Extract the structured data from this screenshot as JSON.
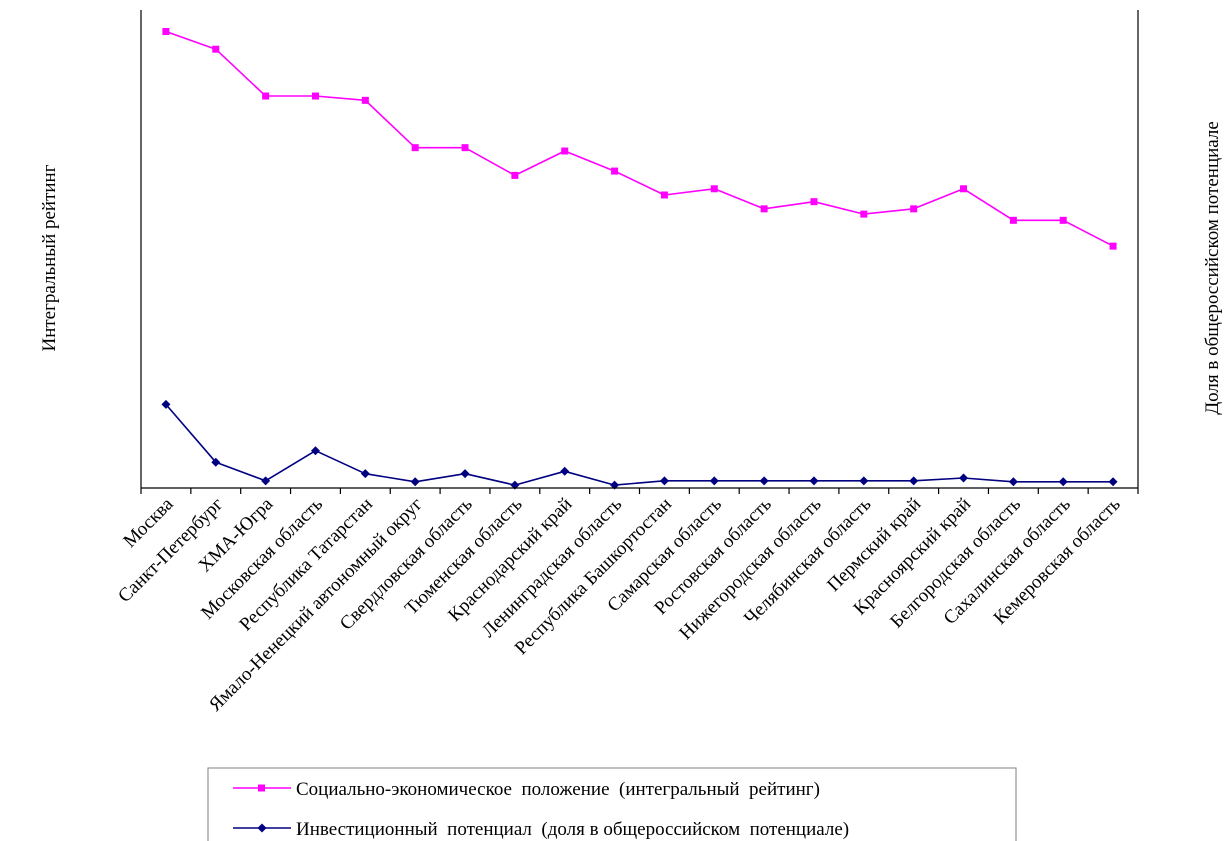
{
  "chart_data": {
    "type": "line",
    "title": "",
    "ylabel_left": "Интегральный  рейтинг",
    "ylabel_right": "Доля в общероссийском потенциале",
    "categories": [
      "Москва",
      "Санкт-Петербург",
      "ХМА-Югра",
      "Московская  область",
      "Республика Татарстан",
      "Ямало-Ненецкий автономный округ",
      "Свердловская  область",
      "Тюменская область",
      "Краснодарский  край",
      "Ленинградская  область",
      "Республика Башкортостан",
      "Самарская  область",
      "Ростовская  область",
      "Нижегородская  область",
      "Челябинская  область",
      "Пермский край",
      "Красноярский  край",
      "Белгородская  область",
      "Сахалинская  область",
      "Кемеровская область"
    ],
    "series": [
      {
        "name": "Социально-экономическое  положение  (интегральный  рейтинг)",
        "axis": "left",
        "color": "#ff00ff",
        "marker": "square",
        "values": [
          95.5,
          91.8,
          82.0,
          82.0,
          81.1,
          71.2,
          71.2,
          65.4,
          70.5,
          66.3,
          61.3,
          62.6,
          58.4,
          59.9,
          57.3,
          58.4,
          62.6,
          56.0,
          56.0,
          50.6
        ]
      },
      {
        "name": "Инвестиционный  потенциал  (доля в общероссийском  потенциале)",
        "axis": "right",
        "color": "#000080",
        "marker": "diamond",
        "values": [
          17.5,
          5.4,
          1.5,
          7.8,
          3.0,
          1.3,
          3.0,
          0.6,
          3.5,
          0.6,
          1.5,
          1.5,
          1.5,
          1.5,
          1.5,
          1.5,
          2.1,
          1.3,
          1.3,
          1.3
        ]
      }
    ],
    "y_left_range": [
      0,
      100
    ],
    "y_right_range": [
      0,
      100
    ],
    "grid": false,
    "y_ticks_shown": false,
    "legend_position": "bottom"
  }
}
